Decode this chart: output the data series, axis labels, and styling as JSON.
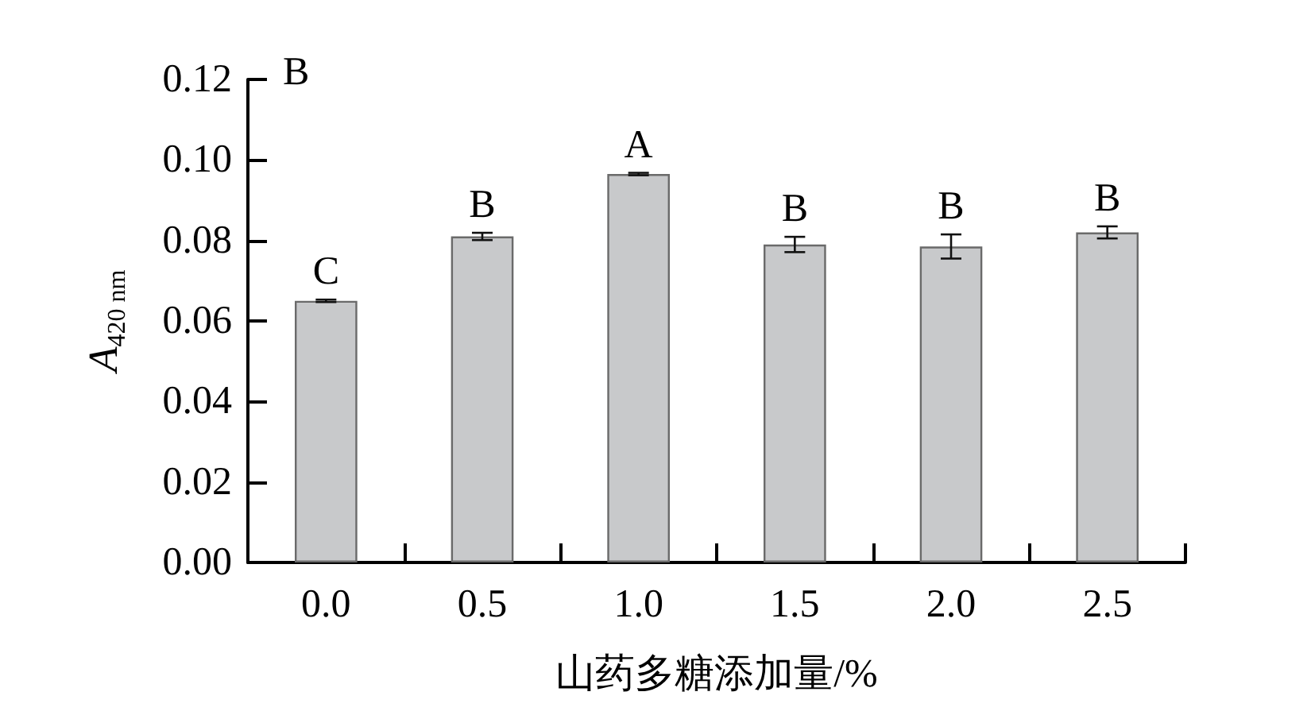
{
  "chart_data": {
    "type": "bar",
    "xlabel": "山药多糖添加量/%",
    "ylabel": "A$_{420 nm}$",
    "categories": [
      "0.0",
      "0.5",
      "1.0",
      "1.5",
      "2.0",
      "2.5"
    ],
    "values": [
      0.065,
      0.081,
      0.0965,
      0.079,
      0.0785,
      0.082
    ],
    "errors": [
      0.0003,
      0.0009,
      0.0003,
      0.0019,
      0.003,
      0.0015
    ],
    "color": "#c8c9cb",
    "ylim": [
      0,
      0.12
    ],
    "yticks": [
      {
        "value": 0,
        "label": "0.00"
      },
      0.02,
      0.04,
      0.06,
      0.08,
      {
        "value": 0.1,
        "label": "0.10"
      },
      0.12
    ],
    "annotations": [
      "B",
      {
        "text": "C",
        "x": "0.0",
        "y": 0.065
      },
      {
        "text": "B",
        "x": "0.5",
        "y": 0.081
      },
      {
        "text": "A",
        "x": "1.0",
        "y": 0.0965
      },
      {
        "text": "B",
        "x": "1.5",
        "y": 0.079
      },
      {
        "text": "B",
        "x": "2.0",
        "y": 0.0785
      },
      {
        "text": "B",
        "x": "2.5",
        "y": 0.082
      }
    ]
  }
}
